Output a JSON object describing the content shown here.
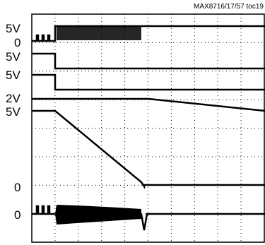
{
  "header": {
    "title": "MAX8716/17/57 toc19"
  },
  "labels": [
    "5V",
    "0",
    "5V",
    "5V",
    "2V",
    "5V",
    "0",
    "0"
  ]
}
